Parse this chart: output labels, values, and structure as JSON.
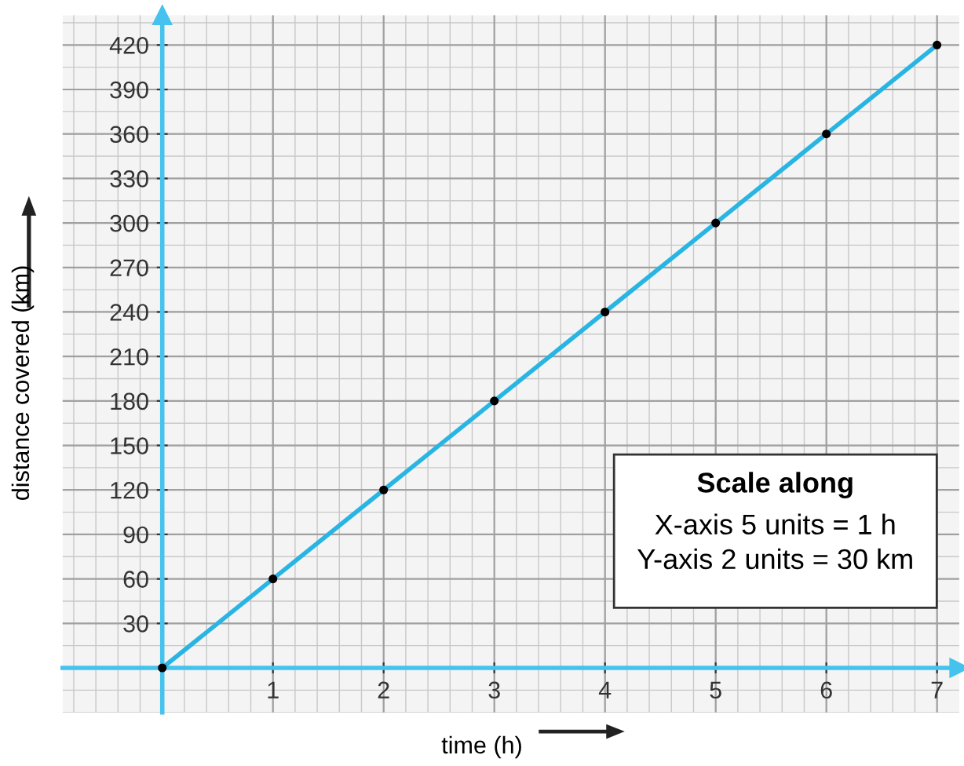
{
  "chart_data": {
    "type": "line",
    "xlabel": "time (h)",
    "ylabel": "distance covered (km)",
    "x": [
      0,
      1,
      2,
      3,
      4,
      5,
      6,
      7
    ],
    "series": [
      {
        "color": "#29b5e3",
        "values": [
          0,
          60,
          120,
          180,
          240,
          300,
          360,
          420
        ]
      }
    ],
    "marker": "circle",
    "line_style": "solid",
    "xlim": [
      -0.9,
      7.2
    ],
    "ylim": [
      -30,
      440
    ],
    "xticks": [
      1,
      2,
      3,
      4,
      5,
      6,
      7
    ],
    "yticks": [
      30,
      60,
      90,
      120,
      150,
      180,
      210,
      240,
      270,
      300,
      330,
      360,
      390,
      420
    ],
    "grid": true,
    "annotations": [
      "Scale along\nX-axis 5 units = 1 h\nY-axis 2 units = 30 km"
    ]
  }
}
